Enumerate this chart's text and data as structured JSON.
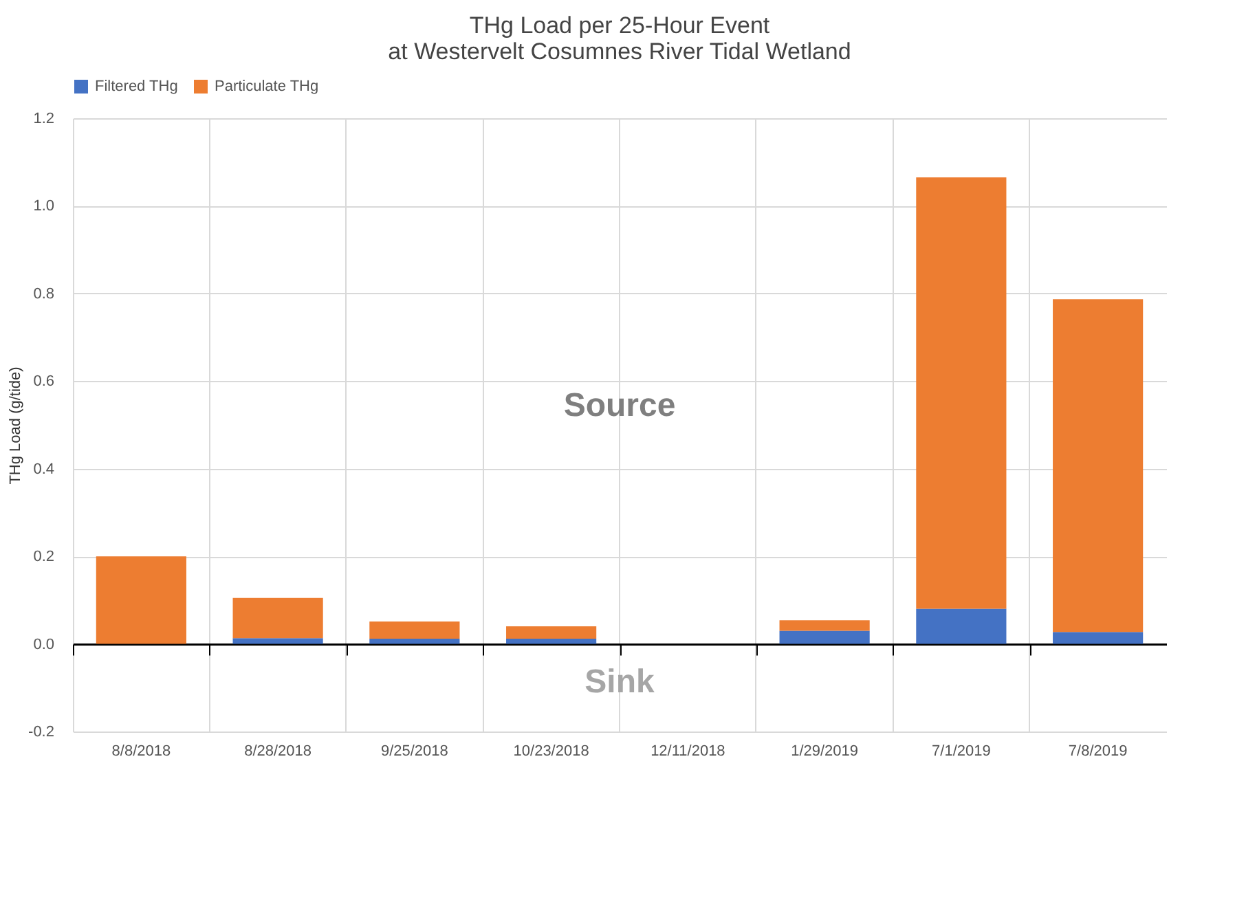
{
  "chart_data": {
    "type": "bar",
    "title": "THg Load per 25-Hour Event\nat Westervelt Cosumnes River Tidal Wetland",
    "ylabel": "THg Load (g/tide)",
    "categories": [
      "8/8/2018",
      "8/28/2018",
      "9/25/2018",
      "10/23/2018",
      "12/11/2018",
      "1/29/2019",
      "7/1/2019",
      "7/8/2019"
    ],
    "series": [
      {
        "name": "Filtered THg",
        "color": "#4472c4",
        "values": [
          0,
          0.013,
          0.012,
          0.012,
          0,
          0.03,
          0.08,
          0.027
        ]
      },
      {
        "name": "Particulate THg",
        "color": "#ed7d31",
        "values": [
          0.2,
          0.092,
          0.039,
          0.028,
          0,
          0.024,
          0.985,
          0.76
        ]
      }
    ],
    "stacked": true,
    "ylim": [
      -0.2,
      1.2
    ],
    "yticks": [
      {
        "value": -0.2,
        "label": "-0.2"
      },
      {
        "value": 0,
        "label": "0.0"
      },
      {
        "value": 0.2,
        "label": "0.2"
      },
      {
        "value": 0.4,
        "label": "0.4"
      },
      {
        "value": 0.6,
        "label": "0.6"
      },
      {
        "value": 0.8,
        "label": "0.8"
      },
      {
        "value": 1,
        "label": "1.0"
      },
      {
        "value": 1.2,
        "label": "1.2"
      }
    ],
    "grid": true,
    "legend": "top",
    "annotations": [
      "Source",
      "Sink"
    ]
  }
}
